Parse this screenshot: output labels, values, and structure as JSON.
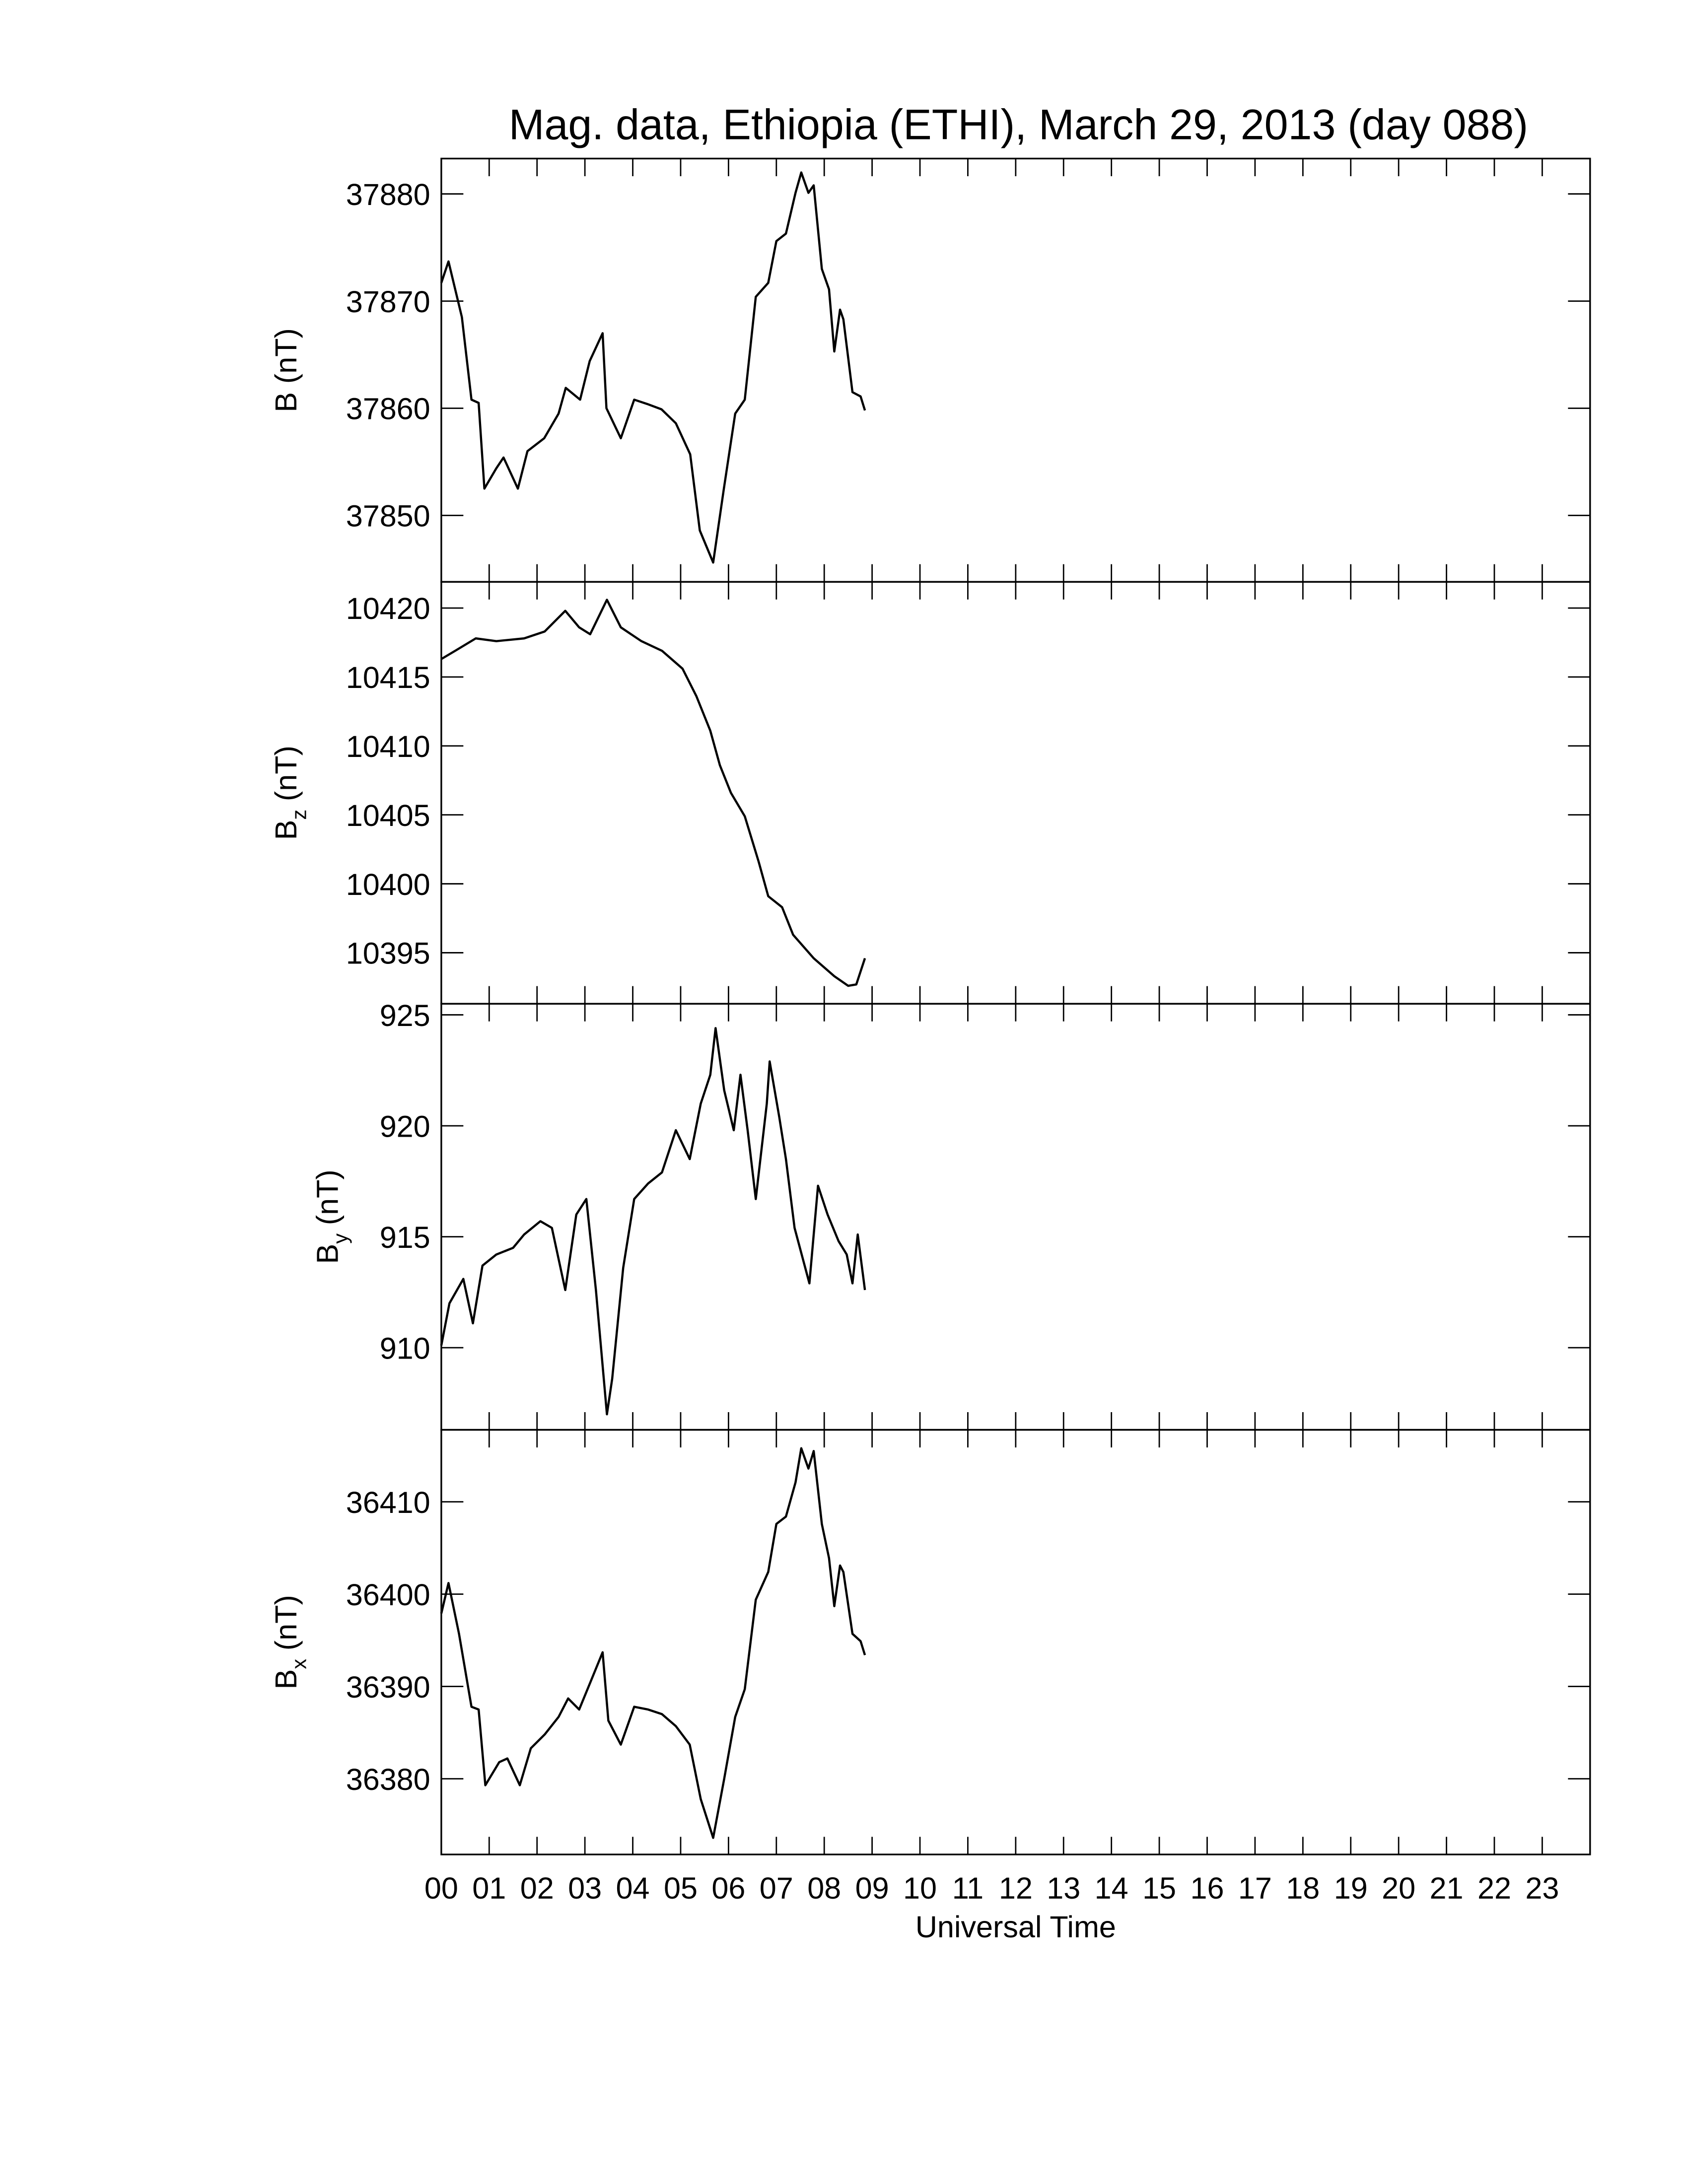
{
  "chart_data": [
    {
      "type": "line",
      "title": "Mag. data, Ethiopia (ETHI), March 29, 2013 (day 088)",
      "ylabel_main": "B",
      "ylabel_unit": "(nT)",
      "color": "#000000",
      "xlim": [
        0,
        24
      ],
      "xticks": [
        0,
        1,
        2,
        3,
        4,
        5,
        6,
        7,
        8,
        9,
        10,
        11,
        12,
        13,
        14,
        15,
        16,
        17,
        18,
        19,
        20,
        21,
        22,
        23,
        24
      ],
      "ylim": [
        37843.8,
        37883.3
      ],
      "yticks": [
        37850,
        37860,
        37870,
        37880
      ],
      "x": [
        0,
        0.15,
        0.43,
        0.63,
        0.78,
        0.9,
        1.15,
        1.3,
        1.6,
        1.8,
        2.15,
        2.45,
        2.6,
        2.9,
        3.1,
        3.37,
        3.45,
        3.75,
        4.03,
        4.3,
        4.6,
        4.9,
        5.2,
        5.4,
        5.68,
        5.9,
        6.14,
        6.34,
        6.57,
        6.83,
        7.0,
        7.2,
        7.4,
        7.52,
        7.67,
        7.78,
        7.95,
        8.1,
        8.21,
        8.33,
        8.4,
        8.59,
        8.76,
        8.85
      ],
      "values": [
        37871.7,
        37873.7,
        37868.5,
        37860.8,
        37860.5,
        37852.5,
        37854.4,
        37855.4,
        37852.5,
        37856,
        37857.2,
        37859.5,
        37861.9,
        37860.8,
        37864.4,
        37867,
        37860,
        37857.2,
        37860.8,
        37860.4,
        37859.9,
        37858.6,
        37855.7,
        37848.6,
        37845.6,
        37852.4,
        37859.5,
        37860.8,
        37870.4,
        37871.7,
        37875.6,
        37876.3,
        37880.1,
        37882,
        37880.1,
        37880.8,
        37873,
        37871.1,
        37865.3,
        37869.2,
        37868.3,
        37861.5,
        37861.1,
        37859.8
      ]
    },
    {
      "type": "line",
      "ylabel_main": "B",
      "ylabel_sub": "z",
      "ylabel_unit": "(nT)",
      "color": "#000000",
      "xlim": [
        0,
        24
      ],
      "xticks": [
        0,
        1,
        2,
        3,
        4,
        5,
        6,
        7,
        8,
        9,
        10,
        11,
        12,
        13,
        14,
        15,
        16,
        17,
        18,
        19,
        20,
        21,
        22,
        23,
        24
      ],
      "ylim": [
        10391.3,
        10421.9
      ],
      "yticks": [
        10395,
        10400,
        10405,
        10410,
        10415,
        10420
      ],
      "x": [
        0,
        0.29,
        0.72,
        1.15,
        1.73,
        2.16,
        2.59,
        2.88,
        3.11,
        3.46,
        3.75,
        4.18,
        4.61,
        5.04,
        5.33,
        5.62,
        5.82,
        6.05,
        6.34,
        6.63,
        6.83,
        7.12,
        7.35,
        7.78,
        8.21,
        8.5,
        8.67,
        8.85
      ],
      "values": [
        10416.3,
        10416.9,
        10417.8,
        10417.6,
        10417.8,
        10418.3,
        10419.8,
        10418.6,
        10418.1,
        10420.6,
        10418.6,
        10417.6,
        10416.9,
        10415.6,
        10413.6,
        10411.1,
        10408.6,
        10406.6,
        10404.9,
        10401.6,
        10399.1,
        10398.3,
        10396.3,
        10394.6,
        10393.3,
        10392.6,
        10392.7,
        10394.6
      ]
    },
    {
      "type": "line",
      "ylabel_main": "B",
      "ylabel_sub": "y",
      "ylabel_unit": "(nT)",
      "color": "#000000",
      "xlim": [
        0,
        24
      ],
      "xticks": [
        0,
        1,
        2,
        3,
        4,
        5,
        6,
        7,
        8,
        9,
        10,
        11,
        12,
        13,
        14,
        15,
        16,
        17,
        18,
        19,
        20,
        21,
        22,
        23,
        24
      ],
      "ylim": [
        906.3,
        925.5
      ],
      "yticks": [
        910,
        915,
        920,
        925
      ],
      "x": [
        0,
        0.17,
        0.46,
        0.66,
        0.86,
        1.15,
        1.5,
        1.73,
        2.07,
        2.31,
        2.59,
        2.82,
        3.03,
        3.23,
        3.46,
        3.57,
        3.8,
        4.03,
        4.32,
        4.61,
        4.9,
        5.19,
        5.42,
        5.62,
        5.73,
        5.91,
        6.11,
        6.25,
        6.4,
        6.57,
        6.8,
        6.86,
        7.06,
        7.2,
        7.38,
        7.69,
        7.87,
        8.07,
        8.3,
        8.47,
        8.59,
        8.7,
        8.85
      ],
      "values": [
        910.1,
        912,
        913.1,
        911.1,
        913.7,
        914.2,
        914.5,
        915.1,
        915.7,
        915.4,
        912.6,
        916,
        916.7,
        912.6,
        907,
        908.6,
        913.6,
        916.7,
        917.4,
        917.9,
        919.8,
        918.5,
        921,
        922.3,
        924.4,
        921.6,
        919.8,
        922.3,
        919.8,
        916.7,
        921,
        922.9,
        920.4,
        918.5,
        915.4,
        912.9,
        917.3,
        916,
        914.8,
        914.2,
        912.9,
        915.1,
        912.6
      ]
    },
    {
      "type": "line",
      "ylabel_main": "B",
      "ylabel_sub": "x",
      "ylabel_unit": "(nT)",
      "color": "#000000",
      "xlabel": "Universal Time",
      "xlim": [
        0,
        24
      ],
      "xticks": [
        {
          "value": 0,
          "label": "00"
        },
        {
          "value": 1,
          "label": "01"
        },
        {
          "value": 2,
          "label": "02"
        },
        {
          "value": 3,
          "label": "03"
        },
        {
          "value": 4,
          "label": "04"
        },
        {
          "value": 5,
          "label": "05"
        },
        {
          "value": 6,
          "label": "06"
        },
        {
          "value": 7,
          "label": "07"
        },
        {
          "value": 8,
          "label": "08"
        },
        {
          "value": 9,
          "label": "09"
        },
        10,
        11,
        12,
        13,
        14,
        15,
        16,
        17,
        18,
        19,
        20,
        21,
        22,
        23
      ],
      "ylim": [
        36371.8,
        36417.8
      ],
      "yticks": [
        36380,
        36390,
        36400,
        36410
      ],
      "x": [
        0,
        0.15,
        0.37,
        0.63,
        0.78,
        0.92,
        1.21,
        1.38,
        1.64,
        1.87,
        2.16,
        2.45,
        2.65,
        2.88,
        3.11,
        3.37,
        3.49,
        3.75,
        4.03,
        4.32,
        4.61,
        4.9,
        5.19,
        5.42,
        5.68,
        5.91,
        6.14,
        6.34,
        6.57,
        6.83,
        7.0,
        7.2,
        7.4,
        7.52,
        7.67,
        7.78,
        7.95,
        8.1,
        8.21,
        8.33,
        8.4,
        8.59,
        8.76,
        8.85
      ],
      "values": [
        36397.9,
        36401.2,
        36395.7,
        36387.8,
        36387.5,
        36379.3,
        36381.8,
        36382.2,
        36379.3,
        36383.3,
        36384.8,
        36386.7,
        36388.7,
        36387.5,
        36390.4,
        36393.7,
        36386.3,
        36383.7,
        36387.8,
        36387.5,
        36387,
        36385.7,
        36383.7,
        36377.8,
        36373.6,
        36380,
        36386.7,
        36389.7,
        36399.4,
        36402.4,
        36407.6,
        36408.4,
        36412.1,
        36415.8,
        36413.6,
        36415.5,
        36407.6,
        36403.9,
        36398.7,
        36403.1,
        36402.4,
        36395.7,
        36394.9,
        36393.4
      ]
    }
  ]
}
